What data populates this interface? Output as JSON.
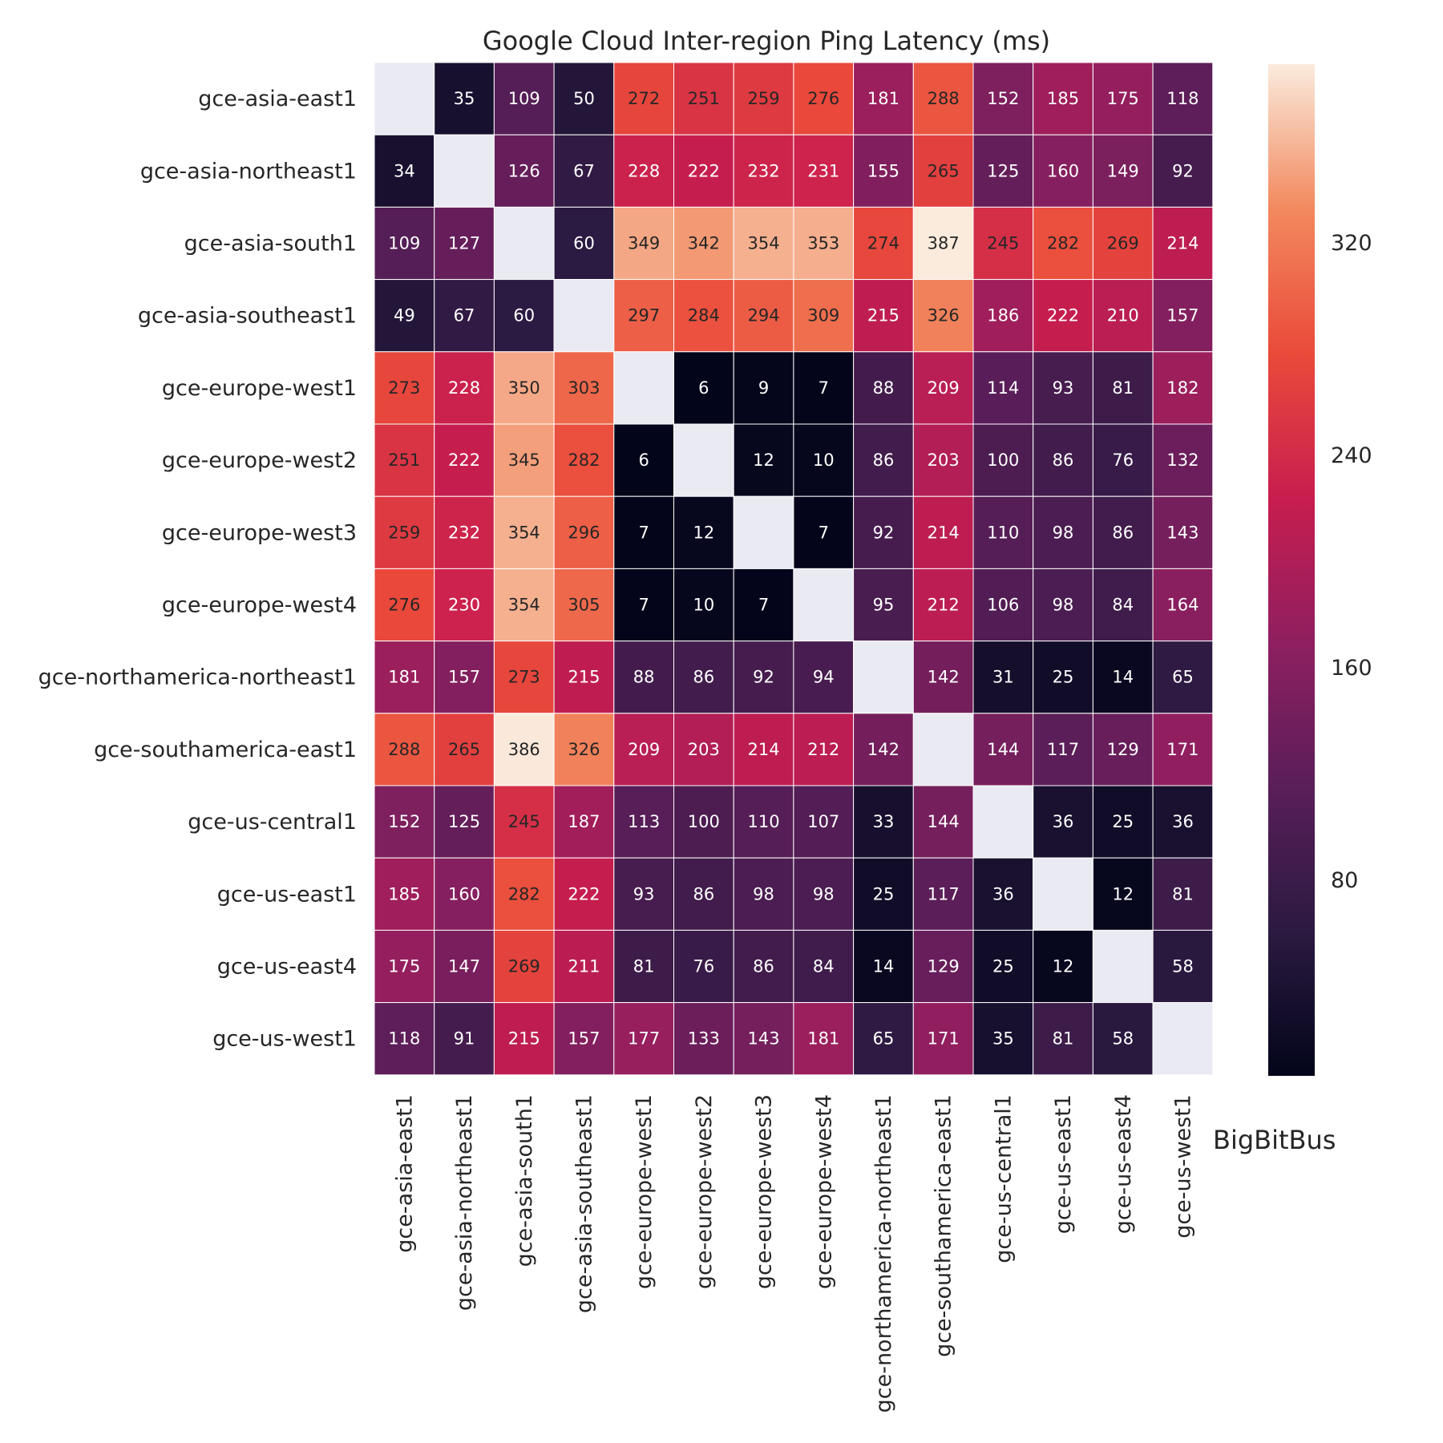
{
  "chart_data": {
    "type": "heatmap",
    "title": "Google Cloud Inter-region Ping Latency (ms)",
    "watermark": "BigBitBus",
    "colormap": "rocket",
    "missing_color": "#eaeaf2",
    "vmin": 6,
    "vmax": 387,
    "colorbar_ticks": [
      80,
      160,
      240,
      320
    ],
    "regions": [
      "gce-asia-east1",
      "gce-asia-northeast1",
      "gce-asia-south1",
      "gce-asia-southeast1",
      "gce-europe-west1",
      "gce-europe-west2",
      "gce-europe-west3",
      "gce-europe-west4",
      "gce-northamerica-northeast1",
      "gce-southamerica-east1",
      "gce-us-central1",
      "gce-us-east1",
      "gce-us-east4",
      "gce-us-west1"
    ],
    "matrix": [
      [
        null,
        35,
        109,
        50,
        272,
        251,
        259,
        276,
        181,
        288,
        152,
        185,
        175,
        118
      ],
      [
        34,
        null,
        126,
        67,
        228,
        222,
        232,
        231,
        155,
        265,
        125,
        160,
        149,
        92
      ],
      [
        109,
        127,
        null,
        60,
        349,
        342,
        354,
        353,
        274,
        387,
        245,
        282,
        269,
        214
      ],
      [
        49,
        67,
        60,
        null,
        297,
        284,
        294,
        309,
        215,
        326,
        186,
        222,
        210,
        157
      ],
      [
        273,
        228,
        350,
        303,
        null,
        6,
        9,
        7,
        88,
        209,
        114,
        93,
        81,
        182
      ],
      [
        251,
        222,
        345,
        282,
        6,
        null,
        12,
        10,
        86,
        203,
        100,
        86,
        76,
        132
      ],
      [
        259,
        232,
        354,
        296,
        7,
        12,
        null,
        7,
        92,
        214,
        110,
        98,
        86,
        143
      ],
      [
        276,
        230,
        354,
        305,
        7,
        10,
        7,
        null,
        95,
        212,
        106,
        98,
        84,
        164
      ],
      [
        181,
        157,
        273,
        215,
        88,
        86,
        92,
        94,
        null,
        142,
        31,
        25,
        14,
        65
      ],
      [
        288,
        265,
        386,
        326,
        209,
        203,
        214,
        212,
        142,
        null,
        144,
        117,
        129,
        171
      ],
      [
        152,
        125,
        245,
        187,
        113,
        100,
        110,
        107,
        33,
        144,
        null,
        36,
        25,
        36
      ],
      [
        185,
        160,
        282,
        222,
        93,
        86,
        98,
        98,
        25,
        117,
        36,
        null,
        12,
        81
      ],
      [
        175,
        147,
        269,
        211,
        81,
        76,
        86,
        84,
        14,
        129,
        25,
        12,
        null,
        58
      ],
      [
        118,
        91,
        215,
        157,
        177,
        133,
        143,
        181,
        65,
        171,
        35,
        81,
        58,
        null
      ]
    ]
  }
}
